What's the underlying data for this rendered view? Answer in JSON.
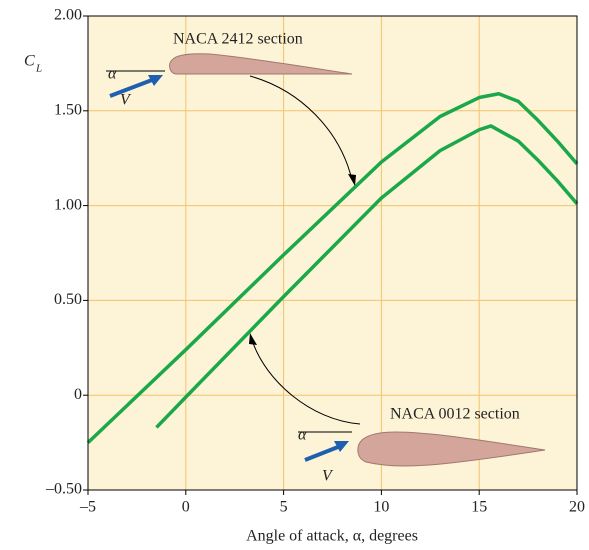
{
  "chart_data": {
    "type": "line",
    "ylabel": {
      "main": "C",
      "sub": "L"
    },
    "xlabel": "Angle of attack, α, degrees",
    "xlim": [
      -5,
      20
    ],
    "xticks": [
      {
        "value": -5,
        "label": "–5"
      },
      0,
      5,
      10,
      15,
      20
    ],
    "ylim": [
      -0.5,
      2.0
    ],
    "yticks": [
      {
        "value": -0.5,
        "label": "–0.50"
      },
      0,
      {
        "value": 0.5,
        "label": "0.50"
      },
      {
        "value": 1.0,
        "label": "1.00"
      },
      {
        "value": 1.5,
        "label": "1.50"
      },
      {
        "value": 2.0,
        "label": "2.00"
      }
    ],
    "grid": true,
    "series": [
      {
        "color": "#1aa84a",
        "x": [
          -5,
          0,
          5,
          10,
          13,
          15,
          16,
          17,
          18,
          19,
          20
        ],
        "values": [
          -0.25,
          0.24,
          0.74,
          1.23,
          1.47,
          1.57,
          1.59,
          1.55,
          1.45,
          1.34,
          1.22
        ]
      },
      {
        "color": "#1aa84a",
        "x": [
          -1.5,
          0,
          5,
          10,
          13,
          15,
          15.6,
          17,
          18,
          19,
          20
        ],
        "values": [
          -0.17,
          -0.01,
          0.52,
          1.04,
          1.29,
          1.4,
          1.42,
          1.34,
          1.24,
          1.13,
          1.01
        ]
      }
    ],
    "annotations": [
      "NACA 2412 section",
      "NACA 0012 section",
      "α",
      "V",
      "α",
      "V"
    ]
  }
}
